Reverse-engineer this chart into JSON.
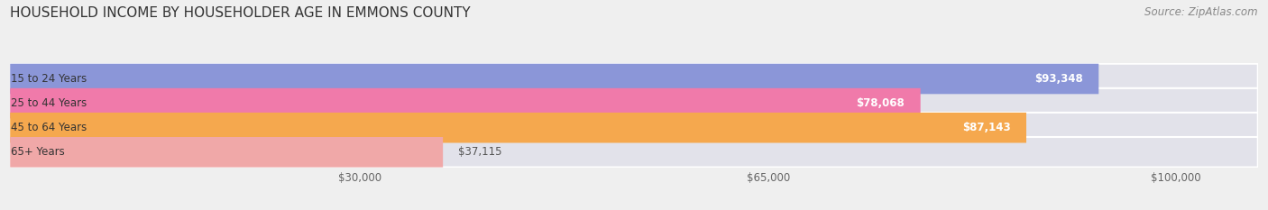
{
  "title": "HOUSEHOLD INCOME BY HOUSEHOLDER AGE IN EMMONS COUNTY",
  "source": "Source: ZipAtlas.com",
  "categories": [
    "15 to 24 Years",
    "25 to 44 Years",
    "45 to 64 Years",
    "65+ Years"
  ],
  "values": [
    93348,
    78068,
    87143,
    37115
  ],
  "bar_colors": [
    "#8b96d8",
    "#f07aaa",
    "#f5a84e",
    "#f0a8a8"
  ],
  "value_labels": [
    "$93,348",
    "$78,068",
    "$87,143",
    "$37,115"
  ],
  "x_ticks": [
    30000,
    65000,
    100000
  ],
  "x_tick_labels": [
    "$30,000",
    "$65,000",
    "$100,000"
  ],
  "xlim_max": 107000,
  "background_color": "#efefef",
  "bar_background": "#e2e2ea",
  "title_fontsize": 11,
  "source_fontsize": 8.5,
  "bar_label_fontsize": 8.5,
  "value_label_fontsize": 8.5
}
